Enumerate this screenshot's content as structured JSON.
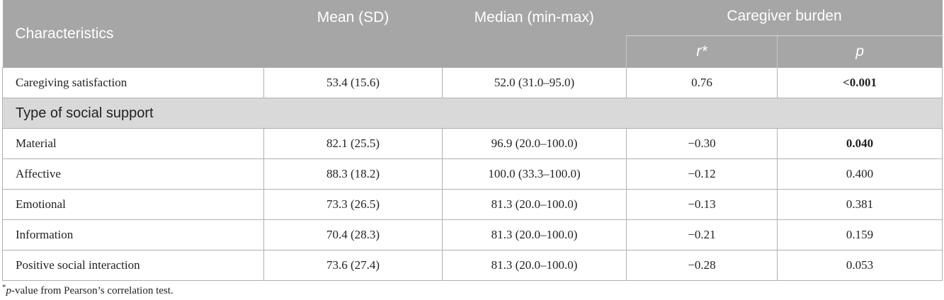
{
  "header": {
    "characteristics": "Characteristics",
    "mean_sd": "Mean (SD)",
    "median": "Median (min-max)",
    "caregiver_burden": "Caregiver burden",
    "r": "r*",
    "p": "p"
  },
  "rows": [
    {
      "label": "Caregiving satisfaction",
      "mean": "53.4 (15.6)",
      "median": "52.0 (31.0–95.0)",
      "r": "0.76",
      "p": "<0.001",
      "p_bold": true
    }
  ],
  "section": "Type of social support",
  "section_rows": [
    {
      "label": "Material",
      "mean": "82.1 (25.5)",
      "median": "96.9 (20.0–100.0)",
      "r": "−0.30",
      "p": "0.040",
      "p_bold": true
    },
    {
      "label": "Affective",
      "mean": "88.3 (18.2)",
      "median": "100.0 (33.3–100.0)",
      "r": "−0.12",
      "p": "0.400",
      "p_bold": false
    },
    {
      "label": "Emotional",
      "mean": "73.3 (26.5)",
      "median": "81.3 (20.0–100.0)",
      "r": "−0.13",
      "p": "0.381",
      "p_bold": false
    },
    {
      "label": "Information",
      "mean": "70.4 (28.3)",
      "median": "81.3 (20.0–100.0)",
      "r": "−0.21",
      "p": "0.159",
      "p_bold": false
    },
    {
      "label": "Positive social interaction",
      "mean": "73.6 (27.4)",
      "median": "81.3 (20.0–100.0)",
      "r": "−0.28",
      "p": "0.053",
      "p_bold": false
    }
  ],
  "footnote": {
    "marker": "*",
    "p": "p",
    "text": "-value from Pearson’s correlation test."
  }
}
